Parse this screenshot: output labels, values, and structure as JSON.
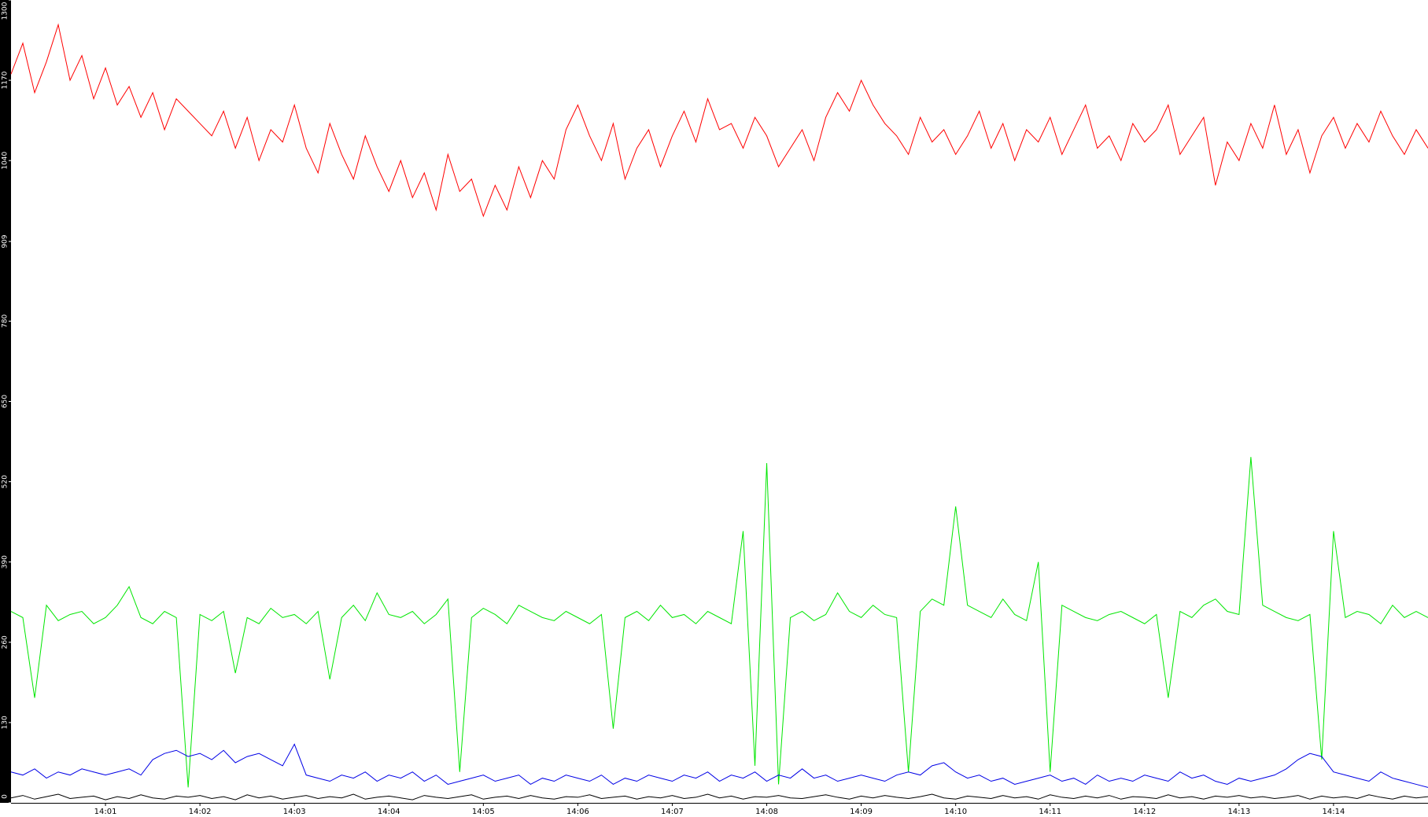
{
  "chart_data": {
    "type": "line",
    "categories": [
      null,
      null,
      null,
      null,
      null,
      null,
      null,
      null,
      "14:01",
      null,
      null,
      null,
      null,
      null,
      null,
      null,
      "14:02",
      null,
      null,
      null,
      null,
      null,
      null,
      null,
      "14:03",
      null,
      null,
      null,
      null,
      null,
      null,
      null,
      "14:04",
      null,
      null,
      null,
      null,
      null,
      null,
      null,
      "14:05",
      null,
      null,
      null,
      null,
      null,
      null,
      null,
      "14:06",
      null,
      null,
      null,
      null,
      null,
      null,
      null,
      "14:07",
      null,
      null,
      null,
      null,
      null,
      null,
      null,
      "14:08",
      null,
      null,
      null,
      null,
      null,
      null,
      null,
      "14:09",
      null,
      null,
      null,
      null,
      null,
      null,
      null,
      "14:10",
      null,
      null,
      null,
      null,
      null,
      null,
      null,
      "14:11",
      null,
      null,
      null,
      null,
      null,
      null,
      null,
      "14:12",
      null,
      null,
      null,
      null,
      null,
      null,
      null,
      "14:13",
      null,
      null,
      null,
      null,
      null,
      null,
      null,
      "14:14",
      null,
      null,
      null,
      null,
      null,
      null,
      null,
      null
    ],
    "series": [
      {
        "color": "#ff0000",
        "values": [
          1180,
          1230,
          1150,
          1200,
          1260,
          1170,
          1210,
          1140,
          1190,
          1130,
          1160,
          1110,
          1150,
          1090,
          1140,
          1120,
          1100,
          1080,
          1120,
          1060,
          1110,
          1040,
          1090,
          1070,
          1130,
          1060,
          1020,
          1100,
          1050,
          1010,
          1080,
          1030,
          990,
          1040,
          980,
          1020,
          960,
          1050,
          990,
          1010,
          950,
          1000,
          960,
          1030,
          980,
          1040,
          1010,
          1090,
          1130,
          1080,
          1040,
          1100,
          1010,
          1060,
          1090,
          1030,
          1080,
          1120,
          1070,
          1140,
          1090,
          1100,
          1060,
          1110,
          1080,
          1030,
          1060,
          1090,
          1040,
          1110,
          1150,
          1120,
          1170,
          1130,
          1100,
          1080,
          1050,
          1110,
          1070,
          1090,
          1050,
          1080,
          1120,
          1060,
          1100,
          1040,
          1090,
          1070,
          1110,
          1050,
          1090,
          1130,
          1060,
          1080,
          1040,
          1100,
          1070,
          1090,
          1130,
          1050,
          1080,
          1110,
          1000,
          1070,
          1040,
          1100,
          1060,
          1130,
          1050,
          1090,
          1020,
          1080,
          1110,
          1060,
          1100,
          1070,
          1120,
          1080,
          1050,
          1090,
          1060
        ]
      },
      {
        "color": "#00e600",
        "values": [
          310,
          300,
          170,
          320,
          295,
          305,
          310,
          290,
          300,
          320,
          350,
          300,
          290,
          310,
          300,
          25,
          305,
          295,
          310,
          210,
          300,
          290,
          315,
          300,
          305,
          290,
          310,
          200,
          300,
          320,
          295,
          340,
          305,
          300,
          310,
          290,
          305,
          330,
          50,
          300,
          315,
          305,
          290,
          320,
          310,
          300,
          295,
          310,
          300,
          290,
          305,
          120,
          300,
          310,
          295,
          320,
          300,
          305,
          290,
          310,
          300,
          290,
          440,
          60,
          550,
          30,
          300,
          310,
          295,
          305,
          340,
          310,
          300,
          320,
          305,
          300,
          50,
          310,
          330,
          320,
          480,
          320,
          310,
          300,
          330,
          305,
          295,
          390,
          50,
          320,
          310,
          300,
          295,
          305,
          310,
          300,
          290,
          305,
          170,
          310,
          300,
          320,
          330,
          310,
          305,
          560,
          320,
          310,
          300,
          295,
          305,
          70,
          440,
          300,
          310,
          305,
          290,
          320,
          300,
          310,
          300
        ]
      },
      {
        "color": "#0000e6",
        "values": [
          50,
          45,
          55,
          40,
          50,
          45,
          55,
          50,
          45,
          50,
          55,
          45,
          70,
          80,
          85,
          75,
          80,
          70,
          85,
          65,
          75,
          80,
          70,
          60,
          95,
          45,
          40,
          35,
          45,
          40,
          50,
          35,
          45,
          40,
          50,
          35,
          45,
          30,
          35,
          40,
          45,
          35,
          40,
          45,
          30,
          40,
          35,
          45,
          40,
          35,
          45,
          30,
          40,
          35,
          45,
          40,
          35,
          45,
          40,
          50,
          35,
          45,
          40,
          50,
          35,
          45,
          40,
          55,
          40,
          45,
          35,
          40,
          45,
          40,
          35,
          45,
          50,
          45,
          60,
          65,
          50,
          40,
          45,
          35,
          40,
          30,
          35,
          40,
          45,
          35,
          40,
          30,
          45,
          35,
          40,
          35,
          45,
          40,
          35,
          50,
          40,
          45,
          35,
          30,
          40,
          35,
          40,
          45,
          55,
          70,
          80,
          75,
          50,
          45,
          40,
          35,
          50,
          40,
          35,
          30,
          25
        ]
      },
      {
        "color": "#000000",
        "values": [
          8,
          12,
          6,
          10,
          14,
          7,
          9,
          11,
          5,
          10,
          7,
          13,
          8,
          6,
          11,
          9,
          12,
          7,
          10,
          5,
          13,
          8,
          11,
          6,
          9,
          12,
          7,
          10,
          8,
          14,
          6,
          9,
          11,
          8,
          5,
          12,
          9,
          7,
          10,
          13,
          6,
          9,
          11,
          7,
          12,
          8,
          6,
          10,
          9,
          13,
          7,
          9,
          11,
          6,
          10,
          8,
          12,
          7,
          9,
          14,
          8,
          11,
          6,
          10,
          9,
          12,
          8,
          7,
          10,
          13,
          9,
          6,
          11,
          8,
          12,
          9,
          7,
          10,
          14,
          8,
          6,
          11,
          9,
          7,
          12,
          8,
          10,
          6,
          13,
          9,
          7,
          11,
          8,
          12,
          6,
          10,
          9,
          7,
          13,
          8,
          10,
          6,
          11,
          9,
          12,
          8,
          10,
          7,
          9,
          12,
          6,
          11,
          8,
          10,
          7,
          13,
          9,
          6,
          11,
          8,
          10
        ]
      }
    ],
    "ylim": [
      0,
      1300
    ],
    "yticks": [
      0,
      130,
      260,
      390,
      520,
      650,
      780,
      909,
      1040,
      1170,
      1300
    ]
  }
}
